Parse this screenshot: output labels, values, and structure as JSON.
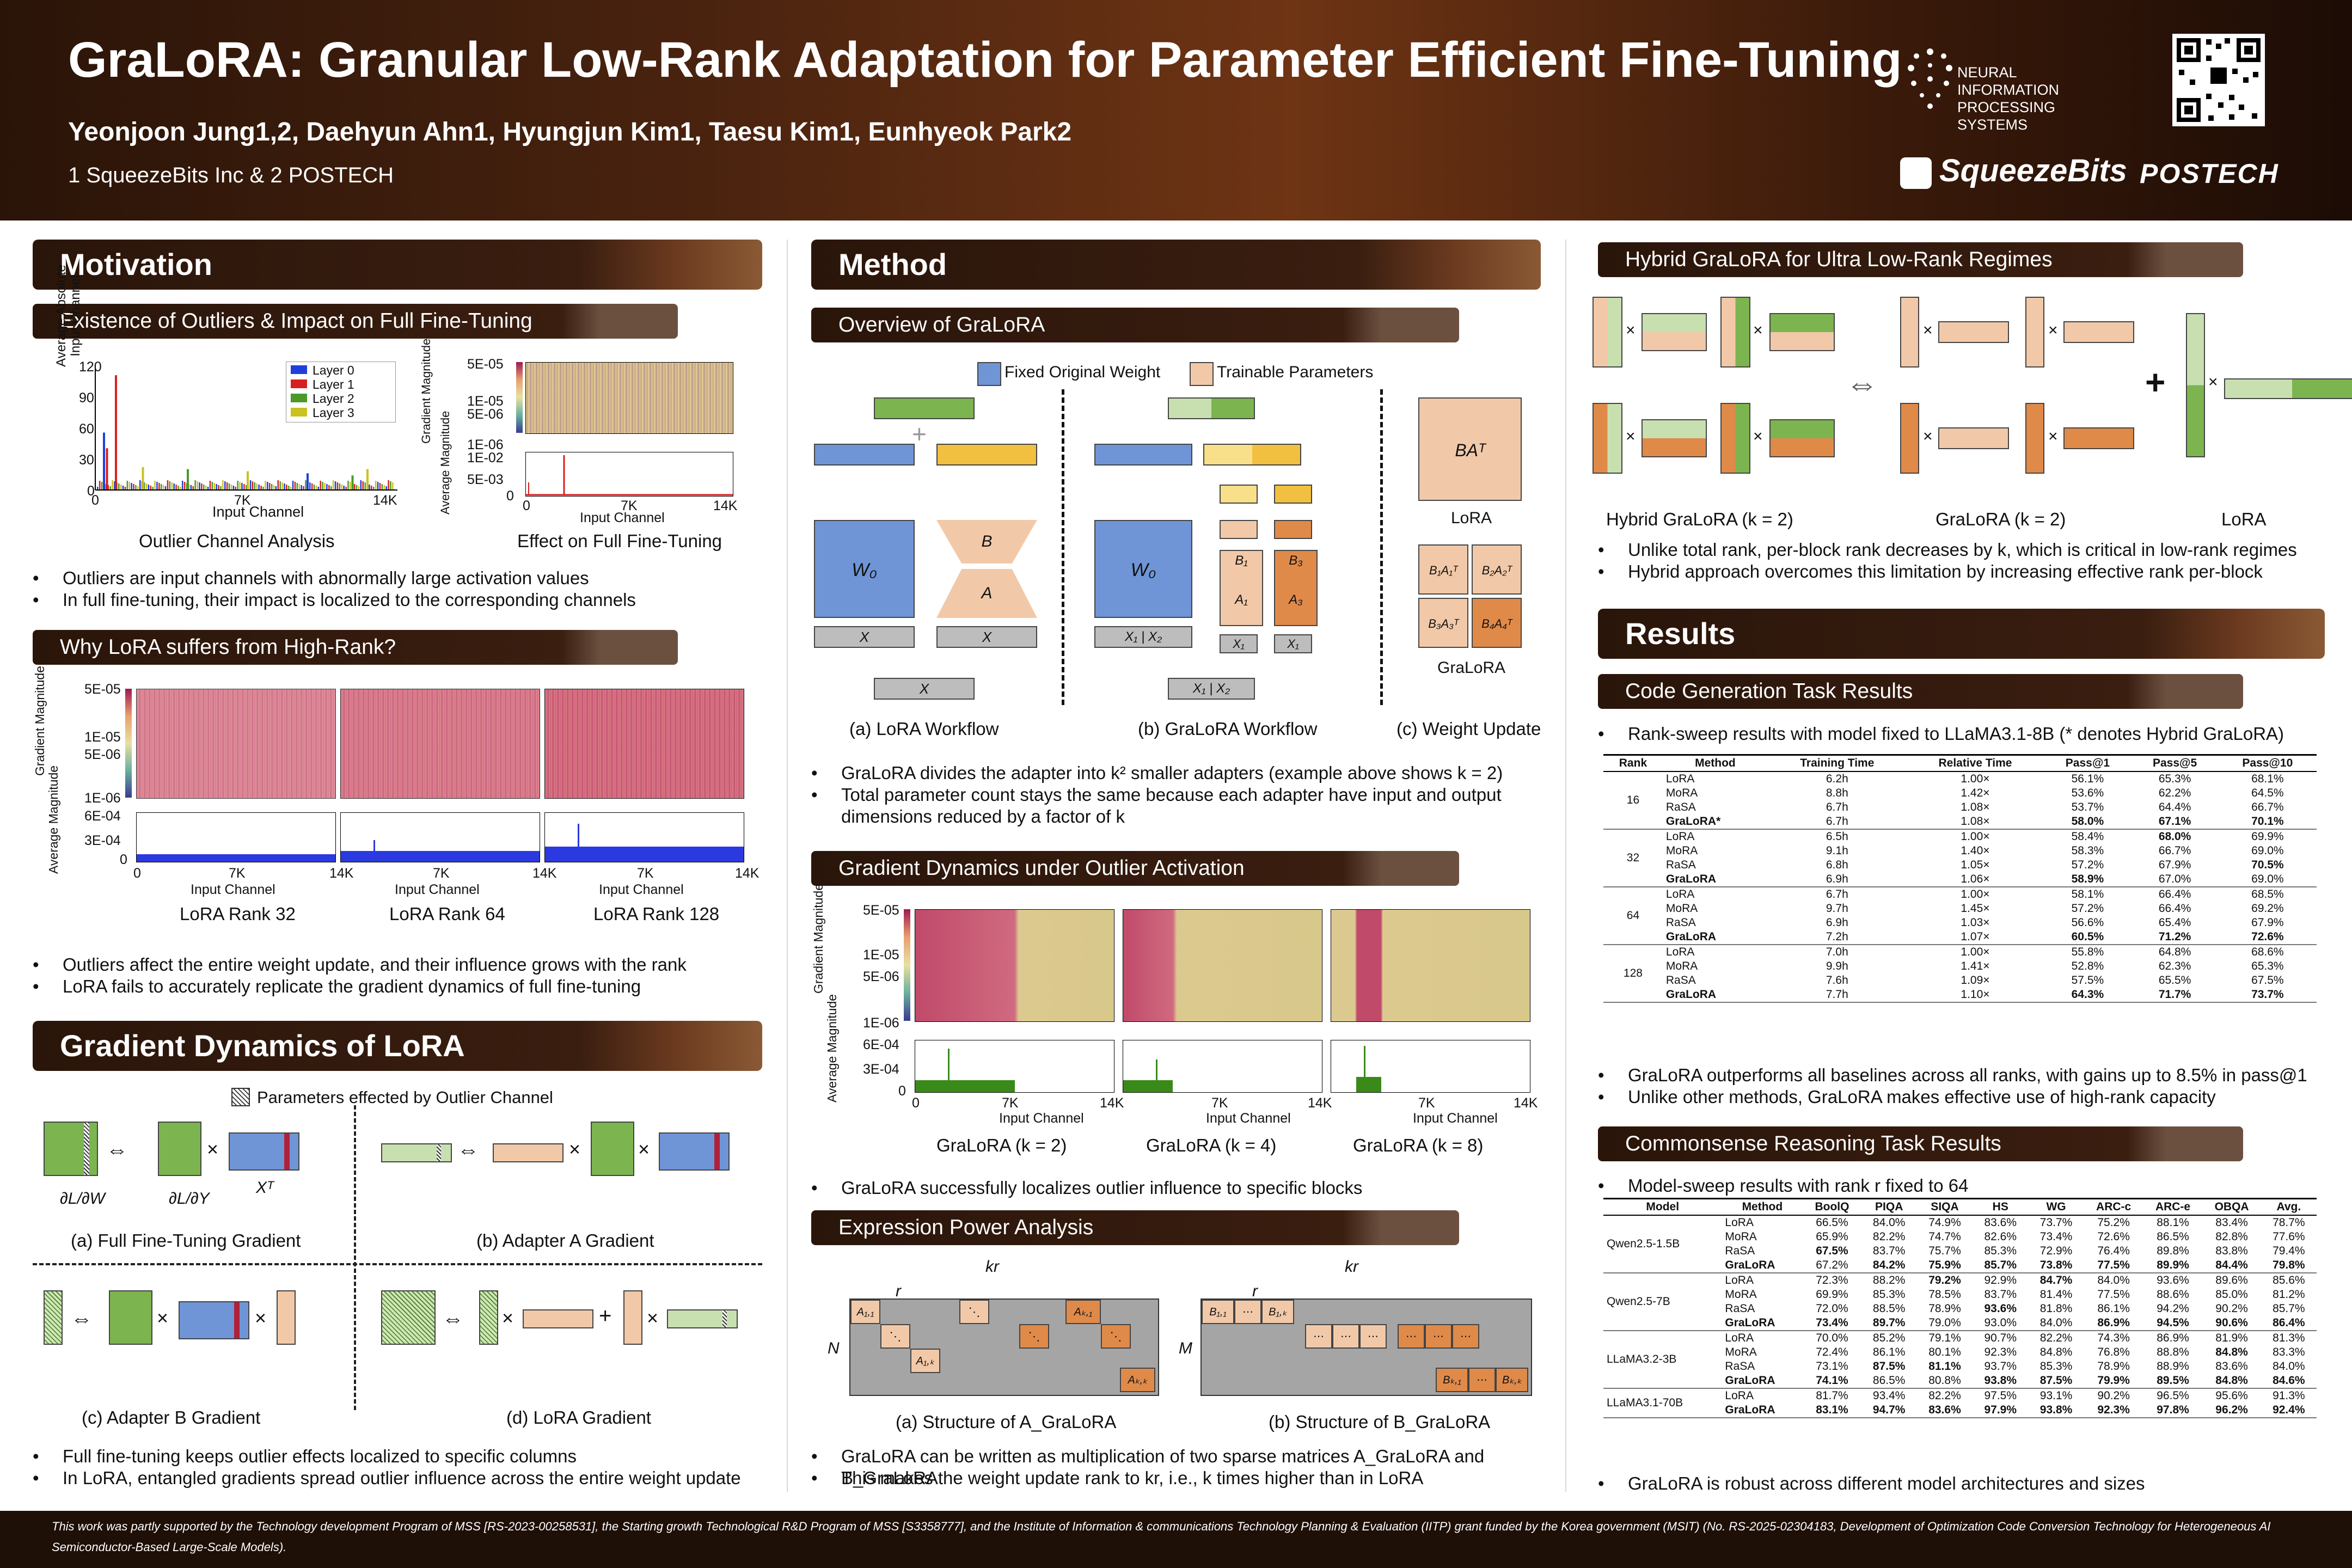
{
  "header": {
    "title": "GraLoRA: Granular Low-Rank Adaptation for Parameter Efficient Fine-Tuning",
    "authors": "Yeonjoon Jung1,2, Daehyun Ahn1, Hyungjun Kim1, Taesu Kim1, Eunhyeok Park2",
    "affiliations": "1 SqueezeBits Inc & 2 POSTECH",
    "logo_neurips": "NEURAL INFORMATION PROCESSING SYSTEMS",
    "logo_squeezebits": "SqueezeBits",
    "logo_postech": "POSTECH"
  },
  "motivation": {
    "title": "Motivation",
    "sub1": "Existence of Outliers & Impact on Full Fine-Tuning",
    "outlier_plot": {
      "ylabel": "Average Absolute Input Channel",
      "xlabel": "Input Channel",
      "yticks": [
        "120",
        "90",
        "60",
        "30",
        "0"
      ],
      "xticks": [
        "0",
        "7K",
        "14K"
      ],
      "legend": [
        "Layer 0",
        "Layer 1",
        "Layer 2",
        "Layer 3"
      ],
      "caption": "Outlier Channel Analysis"
    },
    "fft_plot": {
      "ylabel_top": "Gradient Magnitude",
      "ylabel_bottom": "Average Magnitude",
      "yticks_top": [
        "5E-05",
        "1E-05",
        "5E-06",
        "1E-06"
      ],
      "yticks_bottom": [
        "1E-02",
        "5E-03",
        "0"
      ],
      "xticks": [
        "0",
        "7K",
        "14K"
      ],
      "xlabel": "Input Channel",
      "caption": "Effect on Full Fine-Tuning"
    },
    "bullets1": [
      "Outliers are input channels with abnormally large activation values",
      "In full fine-tuning, their impact is localized to the corresponding channels"
    ],
    "sub2": "Why LoRA suffers from High-Rank?",
    "rank_plot": {
      "ylabel_top": "Gradient Magnitude",
      "ylabel_bottom": "Average Magnitude",
      "yticks_top": [
        "5E-05",
        "1E-05",
        "5E-06",
        "1E-06"
      ],
      "yticks_bottom": [
        "6E-04",
        "3E-04",
        "0"
      ],
      "xticks": [
        "0",
        "7K",
        "14K"
      ],
      "xlabel": "Input Channel",
      "captions": [
        "LoRA Rank 32",
        "LoRA Rank 64",
        "LoRA Rank 128"
      ]
    },
    "bullets2": [
      "Outliers affect the entire weight update, and their influence grows with the rank",
      "LoRA fails to accurately replicate the gradient dynamics of full fine-tuning"
    ]
  },
  "gradient_dynamics": {
    "title": "Gradient Dynamics of LoRA",
    "legend": "Parameters effected by Outlier Channel",
    "captions": [
      "(a) Full Fine-Tuning Gradient",
      "(b) Adapter A Gradient",
      "(c) Adapter B Gradient",
      "(d) LoRA Gradient"
    ],
    "bullets": [
      "Full fine-tuning keeps outlier effects localized to specific columns",
      "In LoRA, entangled gradients spread outlier influence across the entire weight update"
    ]
  },
  "method": {
    "title": "Method",
    "sub1": "Overview of GraLoRA",
    "legend": [
      "Fixed Original Weight",
      "Trainable Parameters"
    ],
    "captions": [
      "(a) LoRA Workflow",
      "(b) GraLoRA Workflow",
      "(c) Weight Update"
    ],
    "weight_update_labels": [
      "LoRA",
      "GraLoRA"
    ],
    "bullets1": [
      "GraLoRA divides the adapter into k² smaller adapters (example above shows k = 2)",
      "Total parameter count stays the same because each adapter have input and output dimensions reduced by a factor of k"
    ],
    "sub2": "Gradient Dynamics under Outlier Activation",
    "grad_plot": {
      "ylabel_top": "Gradient Magnitude",
      "ylabel_bottom": "Average Magnitude",
      "yticks_top": [
        "5E-05",
        "1E-05",
        "5E-06",
        "1E-06"
      ],
      "yticks_bottom": [
        "6E-04",
        "3E-04",
        "0"
      ],
      "xticks": [
        "0",
        "7K",
        "14K"
      ],
      "xlabel": "Input Channel",
      "captions": [
        "GraLoRA (k = 2)",
        "GraLoRA (k = 4)",
        "GraLoRA (k = 8)"
      ]
    },
    "bullets2": [
      "GraLoRA successfully localizes outlier influence to specific blocks"
    ],
    "sub3": "Expression Power Analysis",
    "expr_captions": [
      "(a) Structure of A_GraLoRA",
      "(b) Structure of B_GraLoRA"
    ],
    "bullets3": [
      "GraLoRA can be written as multiplication of two sparse matrices A_GraLoRA and B_GraLoRA",
      "This makes the weight update rank to kr, i.e., k times higher than in LoRA"
    ]
  },
  "hybrid": {
    "sub": "Hybrid GraLoRA for Ultra Low-Rank Regimes",
    "captions": [
      "Hybrid GraLoRA (k = 2)",
      "GraLoRA (k = 2)",
      "LoRA"
    ],
    "bullets": [
      "Unlike total rank, per-block rank decreases by k, which is critical in low-rank regimes",
      "Hybrid approach overcomes this limitation by increasing effective rank per-block"
    ]
  },
  "results": {
    "title": "Results",
    "sub1": "Code Generation Task Results",
    "bullet1": "Rank-sweep results with model fixed to LLaMA3.1-8B (* denotes Hybrid GraLoRA)",
    "code_table": {
      "headers": [
        "Rank",
        "Method",
        "Training Time",
        "Relative Time",
        "Pass@1",
        "Pass@5",
        "Pass@10"
      ],
      "groups": [
        {
          "rank": "16",
          "rows": [
            [
              "LoRA",
              "6.2h",
              "1.00×",
              "56.1%",
              "65.3%",
              "68.1%"
            ],
            [
              "MoRA",
              "8.8h",
              "1.42×",
              "53.6%",
              "62.2%",
              "64.5%"
            ],
            [
              "RaSA",
              "6.7h",
              "1.08×",
              "53.7%",
              "64.4%",
              "66.7%"
            ],
            [
              "GraLoRA*",
              "6.7h",
              "1.08×",
              "58.0%",
              "67.1%",
              "70.1%"
            ]
          ]
        },
        {
          "rank": "32",
          "rows": [
            [
              "LoRA",
              "6.5h",
              "1.00×",
              "58.4%",
              "68.0%",
              "69.9%"
            ],
            [
              "MoRA",
              "9.1h",
              "1.40×",
              "58.3%",
              "66.7%",
              "69.0%"
            ],
            [
              "RaSA",
              "6.8h",
              "1.05×",
              "57.2%",
              "67.9%",
              "70.5%"
            ],
            [
              "GraLoRA",
              "6.9h",
              "1.06×",
              "58.9%",
              "67.0%",
              "69.0%"
            ]
          ]
        },
        {
          "rank": "64",
          "rows": [
            [
              "LoRA",
              "6.7h",
              "1.00×",
              "58.1%",
              "66.4%",
              "68.5%"
            ],
            [
              "MoRA",
              "9.7h",
              "1.45×",
              "57.2%",
              "66.4%",
              "69.2%"
            ],
            [
              "RaSA",
              "6.9h",
              "1.03×",
              "56.6%",
              "65.4%",
              "67.9%"
            ],
            [
              "GraLoRA",
              "7.2h",
              "1.07×",
              "60.5%",
              "71.2%",
              "72.6%"
            ]
          ]
        },
        {
          "rank": "128",
          "rows": [
            [
              "LoRA",
              "7.0h",
              "1.00×",
              "55.8%",
              "64.8%",
              "68.6%"
            ],
            [
              "MoRA",
              "9.9h",
              "1.41×",
              "52.8%",
              "62.3%",
              "65.3%"
            ],
            [
              "RaSA",
              "7.6h",
              "1.09×",
              "57.5%",
              "65.5%",
              "67.5%"
            ],
            [
              "GraLoRA",
              "7.7h",
              "1.10×",
              "64.3%",
              "71.7%",
              "73.7%"
            ]
          ]
        }
      ]
    },
    "bullets2": [
      "GraLoRA outperforms all baselines across all ranks, with gains up to 8.5% in pass@1",
      "Unlike other methods, GraLoRA makes effective use of high-rank capacity"
    ],
    "sub2": "Commonsense Reasoning Task Results",
    "bullet3": "Model-sweep results with rank r fixed to 64",
    "cs_table": {
      "headers": [
        "Model",
        "Method",
        "BoolQ",
        "PIQA",
        "SIQA",
        "HS",
        "WG",
        "ARC-c",
        "ARC-e",
        "OBQA",
        "Avg."
      ],
      "groups": [
        {
          "model": "Qwen2.5-1.5B",
          "rows": [
            [
              "LoRA",
              "66.5%",
              "84.0%",
              "74.9%",
              "83.6%",
              "73.7%",
              "75.2%",
              "88.1%",
              "83.4%",
              "78.7%"
            ],
            [
              "MoRA",
              "65.9%",
              "82.2%",
              "74.7%",
              "82.6%",
              "73.4%",
              "72.6%",
              "86.5%",
              "82.8%",
              "77.6%"
            ],
            [
              "RaSA",
              "67.5%",
              "83.7%",
              "75.7%",
              "85.3%",
              "72.9%",
              "76.4%",
              "89.8%",
              "83.8%",
              "79.4%"
            ],
            [
              "GraLoRA",
              "67.2%",
              "84.2%",
              "75.9%",
              "85.7%",
              "73.8%",
              "77.5%",
              "89.9%",
              "84.4%",
              "79.8%"
            ]
          ]
        },
        {
          "model": "Qwen2.5-7B",
          "rows": [
            [
              "LoRA",
              "72.3%",
              "88.2%",
              "79.2%",
              "92.9%",
              "84.7%",
              "84.0%",
              "93.6%",
              "89.6%",
              "85.6%"
            ],
            [
              "MoRA",
              "69.9%",
              "85.3%",
              "78.5%",
              "83.7%",
              "81.4%",
              "77.5%",
              "88.6%",
              "85.0%",
              "81.2%"
            ],
            [
              "RaSA",
              "72.0%",
              "88.5%",
              "78.9%",
              "93.6%",
              "81.8%",
              "86.1%",
              "94.2%",
              "90.2%",
              "85.7%"
            ],
            [
              "GraLoRA",
              "73.4%",
              "89.7%",
              "79.0%",
              "93.0%",
              "84.0%",
              "86.9%",
              "94.5%",
              "90.6%",
              "86.4%"
            ]
          ]
        },
        {
          "model": "LLaMA3.2-3B",
          "rows": [
            [
              "LoRA",
              "70.0%",
              "85.2%",
              "79.1%",
              "90.7%",
              "82.2%",
              "74.3%",
              "86.9%",
              "81.9%",
              "81.3%"
            ],
            [
              "MoRA",
              "72.4%",
              "86.1%",
              "80.1%",
              "92.3%",
              "84.8%",
              "76.8%",
              "88.8%",
              "84.8%",
              "83.3%"
            ],
            [
              "RaSA",
              "73.1%",
              "87.5%",
              "81.1%",
              "93.7%",
              "85.3%",
              "78.9%",
              "88.9%",
              "83.6%",
              "84.0%"
            ],
            [
              "GraLoRA",
              "74.1%",
              "86.5%",
              "80.8%",
              "93.8%",
              "87.5%",
              "79.9%",
              "89.5%",
              "84.8%",
              "84.6%"
            ]
          ]
        },
        {
          "model": "LLaMA3.1-70B",
          "rows": [
            [
              "LoRA",
              "81.7%",
              "93.4%",
              "82.2%",
              "97.5%",
              "93.1%",
              "90.2%",
              "96.5%",
              "95.6%",
              "91.3%"
            ],
            [
              "GraLoRA",
              "83.1%",
              "94.7%",
              "83.6%",
              "97.9%",
              "93.8%",
              "92.3%",
              "97.8%",
              "96.2%",
              "92.4%"
            ]
          ]
        }
      ]
    },
    "bullet4": "GraLoRA is robust across different model architectures and sizes"
  },
  "footer": "This work was partly supported by the Technology development Program of MSS [RS-2023-00258531], the Starting growth Technological R&D Program of MSS [S3358777], and the Institute of Information & communications Technology Planning & Evaluation (IITP) grant funded by the Korea government (MSIT) (No. RS-2025-02304183, Development of Optimization Code Conversion Technology for Heterogeneous AI Semiconductor-Based Large-Scale Models).",
  "colors": {
    "fixed": "#6f95d6",
    "trainable": "#f2c9a8",
    "green": "#7cb550",
    "orange": "#e08a4a",
    "header": "#3a1e10"
  }
}
